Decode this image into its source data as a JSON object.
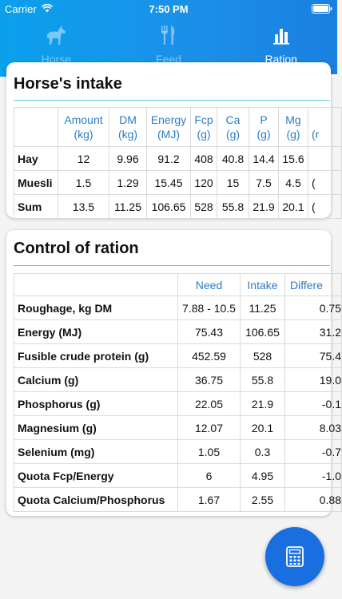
{
  "status": {
    "carrier": "Carrier",
    "time": "7:50 PM"
  },
  "tabs": [
    {
      "label": "Horse",
      "icon": "horse-icon",
      "active": false
    },
    {
      "label": "Feed",
      "icon": "fork-knife-icon",
      "active": false
    },
    {
      "label": "Ration",
      "icon": "bar-chart-icon",
      "active": true
    }
  ],
  "intake": {
    "title": "Horse's intake",
    "headers": [
      [
        "Amount",
        "(kg)"
      ],
      [
        "DM",
        "(kg)"
      ],
      [
        "Energy",
        "(MJ)"
      ],
      [
        "Fcp",
        "(g)"
      ],
      [
        "Ca",
        "(g)"
      ],
      [
        "P",
        "(g)"
      ],
      [
        "Mg",
        "(g)"
      ],
      [
        "(r",
        ""
      ]
    ],
    "rows": [
      {
        "name": "Hay",
        "values": [
          "12",
          "9.96",
          "91.2",
          "408",
          "40.8",
          "14.4",
          "15.6",
          ""
        ]
      },
      {
        "name": "Muesli",
        "values": [
          "1.5",
          "1.29",
          "15.45",
          "120",
          "15",
          "7.5",
          "4.5",
          "("
        ]
      },
      {
        "name": "Sum",
        "values": [
          "13.5",
          "11.25",
          "106.65",
          "528",
          "55.8",
          "21.9",
          "20.1",
          "("
        ]
      }
    ]
  },
  "control": {
    "title": "Control of ration",
    "headers": [
      "Need",
      "Intake",
      "Differe"
    ],
    "rows": [
      {
        "name": "Roughage, kg DM",
        "need": "7.88 - 10.5",
        "intake": "11.25",
        "diff": "0.75"
      },
      {
        "name": "Energy (MJ)",
        "need": "75.43",
        "intake": "106.65",
        "diff": "31.2"
      },
      {
        "name": "Fusible crude protein (g)",
        "need": "452.59",
        "intake": "528",
        "diff": "75.4"
      },
      {
        "name": "Calcium (g)",
        "need": "36.75",
        "intake": "55.8",
        "diff": "19.0"
      },
      {
        "name": "Phosphorus (g)",
        "need": "22.05",
        "intake": "21.9",
        "diff": "-0.1"
      },
      {
        "name": "Magnesium (g)",
        "need": "12.07",
        "intake": "20.1",
        "diff": "8.03"
      },
      {
        "name": "Selenium (mg)",
        "need": "1.05",
        "intake": "0.3",
        "diff": "-0.7"
      },
      {
        "name": "Quota Fcp/Energy",
        "need": "6",
        "intake": "4.95",
        "diff": "-1.0"
      },
      {
        "name": "Quota Calcium/Phosphorus",
        "need": "1.67",
        "intake": "2.55",
        "diff": "0.88"
      }
    ]
  },
  "fab": {
    "icon": "calculator-icon"
  },
  "colors": {
    "header_start": "#0aa0ec",
    "header_end": "#1a7fe0",
    "accent": "#2a7cc7",
    "fab": "#1a6fe0",
    "rule": "#63c9d9"
  }
}
